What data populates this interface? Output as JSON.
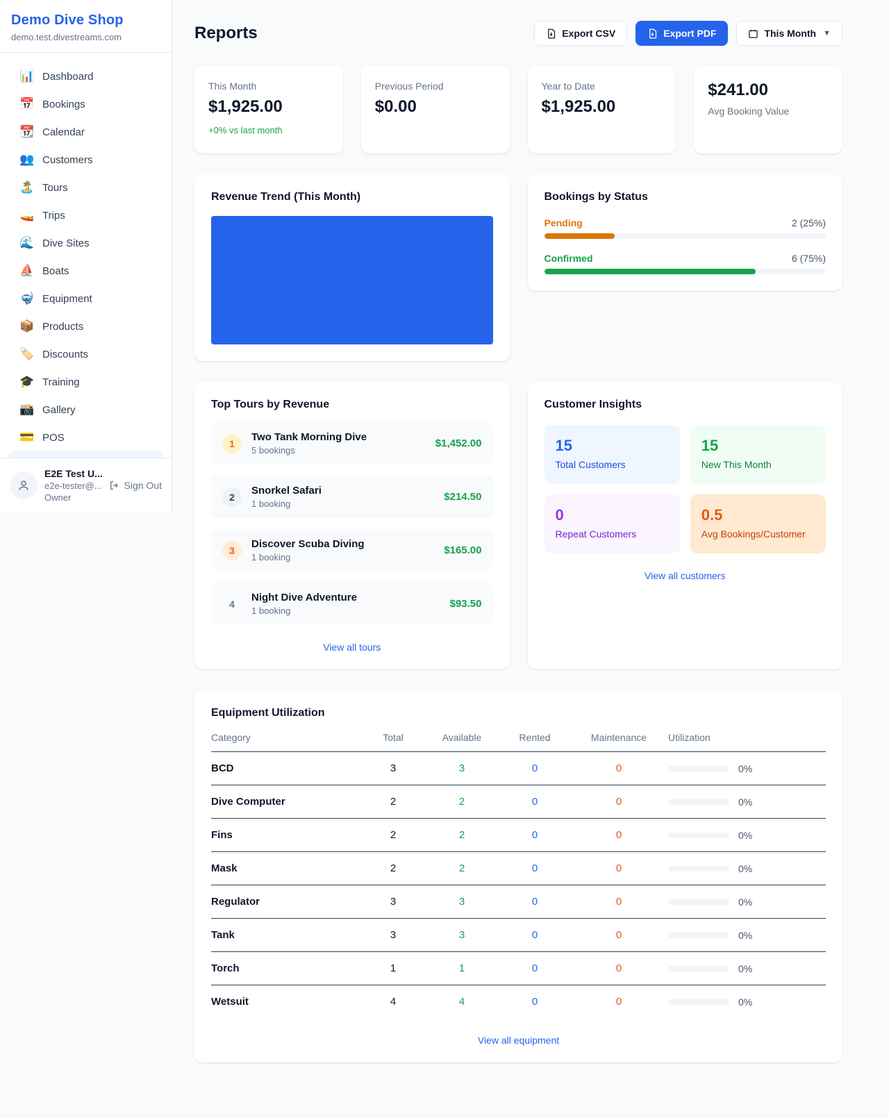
{
  "colors": {
    "accent_blue": "#2563eb",
    "green": "#16a34a",
    "amber": "#d97706",
    "orange": "#ea580c",
    "purple": "#9333ea",
    "text_dark": "#0f172a",
    "text_gray": "#64748b",
    "page_bg": "#f8fafc"
  },
  "sidebar": {
    "brand": {
      "name": "Demo Dive Shop",
      "domain": "demo.test.divestreams.com"
    },
    "items": [
      {
        "icon_name": "bar-chart-icon",
        "glyph": "📊",
        "label": "Dashboard"
      },
      {
        "icon_name": "calendar-date-icon",
        "glyph": "📅",
        "label": "Bookings"
      },
      {
        "icon_name": "tear-calendar-icon",
        "glyph": "📆",
        "label": "Calendar"
      },
      {
        "icon_name": "people-icon",
        "glyph": "👥",
        "label": "Customers"
      },
      {
        "icon_name": "island-icon",
        "glyph": "🏝️",
        "label": "Tours"
      },
      {
        "icon_name": "speedboat-icon",
        "glyph": "🚤",
        "label": "Trips"
      },
      {
        "icon_name": "wave-icon",
        "glyph": "🌊",
        "label": "Dive Sites"
      },
      {
        "icon_name": "sailboat-icon",
        "glyph": "⛵",
        "label": "Boats"
      },
      {
        "icon_name": "diving-mask-icon",
        "glyph": "🤿",
        "label": "Equipment"
      },
      {
        "icon_name": "package-icon",
        "glyph": "📦",
        "label": "Products"
      },
      {
        "icon_name": "tag-icon",
        "glyph": "🏷️",
        "label": "Discounts"
      },
      {
        "icon_name": "graduation-cap-icon",
        "glyph": "🎓",
        "label": "Training"
      },
      {
        "icon_name": "camera-icon",
        "glyph": "📸",
        "label": "Gallery"
      },
      {
        "icon_name": "credit-card-icon",
        "glyph": "💳",
        "label": "POS"
      }
    ],
    "user": {
      "name": "E2E Test U...",
      "email": "e2e-tester@...",
      "role": "Owner",
      "sign_out": "Sign Out"
    }
  },
  "header": {
    "title": "Reports",
    "export_csv": "Export CSV",
    "export_pdf": "Export PDF",
    "period": "This Month"
  },
  "stats": {
    "cards": [
      {
        "label": "This Month",
        "value": "$1,925.00",
        "delta": "+0% vs last month"
      },
      {
        "label": "Previous Period",
        "value": "$0.00"
      },
      {
        "label": "Year to Date",
        "value": "$1,925.00"
      },
      {
        "label": "Avg Booking Value",
        "value": "$241.00"
      }
    ]
  },
  "revenue_trend": {
    "title": "Revenue Trend (This Month)"
  },
  "bookings_status": {
    "title": "Bookings by Status",
    "rows": [
      {
        "label": "Pending",
        "value": "2 (25%)",
        "percent": "25%"
      },
      {
        "label": "Confirmed",
        "value": "6 (75%)",
        "percent": "75%"
      }
    ]
  },
  "top_tours": {
    "title": "Top Tours by Revenue",
    "items": [
      {
        "rank": "1",
        "name": "Two Tank Morning Dive",
        "bookings": "5 bookings",
        "revenue": "$1,452.00"
      },
      {
        "rank": "2",
        "name": "Snorkel Safari",
        "bookings": "1 booking",
        "revenue": "$214.50"
      },
      {
        "rank": "3",
        "name": "Discover Scuba Diving",
        "bookings": "1 booking",
        "revenue": "$165.00"
      },
      {
        "rank": "4",
        "name": "Night Dive Adventure",
        "bookings": "1 booking",
        "revenue": "$93.50"
      }
    ],
    "view_all": "View all tours"
  },
  "customer_insights": {
    "title": "Customer Insights",
    "tiles": [
      {
        "value": "15",
        "label": "Total Customers"
      },
      {
        "value": "15",
        "label": "New This Month"
      },
      {
        "value": "0",
        "label": "Repeat Customers"
      },
      {
        "value": "0.5",
        "label": "Avg Bookings/Customer"
      }
    ],
    "view_all": "View all customers"
  },
  "equipment": {
    "title": "Equipment Utilization",
    "columns": [
      "Category",
      "Total",
      "Available",
      "Rented",
      "Maintenance",
      "Utilization"
    ],
    "rows": [
      {
        "category": "BCD",
        "total": "3",
        "available": "3",
        "rented": "0",
        "maintenance": "0",
        "utilization": "0%",
        "bar": "0%"
      },
      {
        "category": "Dive Computer",
        "total": "2",
        "available": "2",
        "rented": "0",
        "maintenance": "0",
        "utilization": "0%",
        "bar": "0%"
      },
      {
        "category": "Fins",
        "total": "2",
        "available": "2",
        "rented": "0",
        "maintenance": "0",
        "utilization": "0%",
        "bar": "0%"
      },
      {
        "category": "Mask",
        "total": "2",
        "available": "2",
        "rented": "0",
        "maintenance": "0",
        "utilization": "0%",
        "bar": "0%"
      },
      {
        "category": "Regulator",
        "total": "3",
        "available": "3",
        "rented": "0",
        "maintenance": "0",
        "utilization": "0%",
        "bar": "0%"
      },
      {
        "category": "Tank",
        "total": "3",
        "available": "3",
        "rented": "0",
        "maintenance": "0",
        "utilization": "0%",
        "bar": "0%"
      },
      {
        "category": "Torch",
        "total": "1",
        "available": "1",
        "rented": "0",
        "maintenance": "0",
        "utilization": "0%",
        "bar": "0%"
      },
      {
        "category": "Wetsuit",
        "total": "4",
        "available": "4",
        "rented": "0",
        "maintenance": "0",
        "utilization": "0%",
        "bar": "0%"
      }
    ],
    "view_all": "View all equipment"
  },
  "chart_data": [
    {
      "type": "bar",
      "title": "Revenue Trend (This Month)",
      "categories": [
        "This Month"
      ],
      "values": [
        1925.0
      ],
      "ylim": [
        0,
        1925
      ],
      "note": "single full-width solid blue bar filling the plot area, no axes or labels visible",
      "bar_color": "#2563eb"
    },
    {
      "type": "bar",
      "title": "Bookings by Status",
      "categories": [
        "Pending",
        "Confirmed"
      ],
      "values": [
        2,
        6
      ],
      "percent": [
        25,
        75
      ],
      "colors": [
        "#d97706",
        "#16a34a"
      ],
      "note": "horizontal progress bars with right-aligned count (percent) labels"
    }
  ]
}
